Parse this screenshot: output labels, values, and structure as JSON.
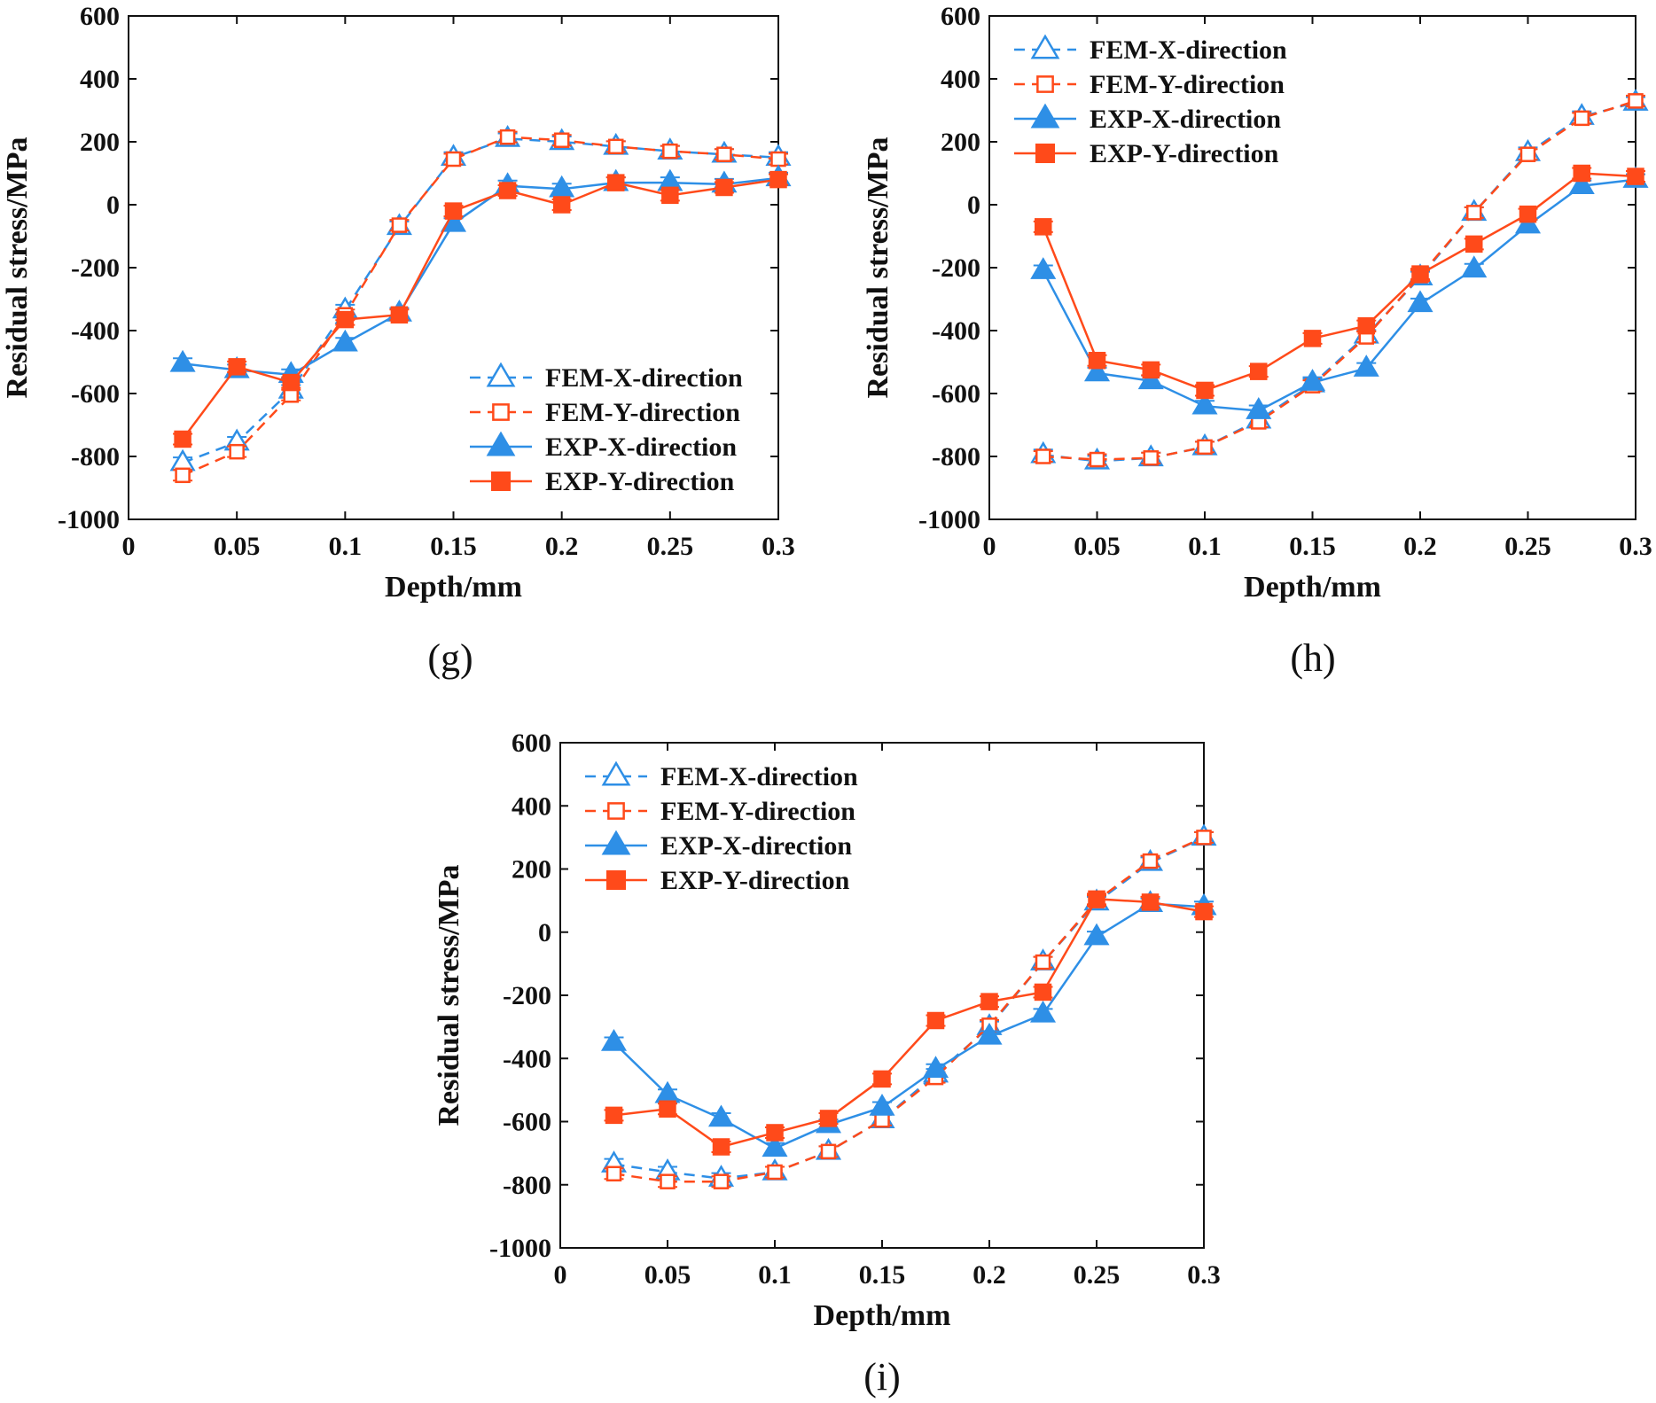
{
  "colors": {
    "x_direction": "#2e8fe6",
    "y_direction": "#ff4a1a",
    "axis": "#111111"
  },
  "chart_data": [
    {
      "type": "line",
      "panel_label": "(g)",
      "xlabel": "Depth/mm",
      "ylabel": "Residual stress/MPa",
      "xlim": [
        0,
        0.3
      ],
      "ylim": [
        -1000,
        600
      ],
      "x_ticks": [
        "0",
        "0.05",
        "0.1",
        "0.15",
        "0.2",
        "0.25",
        "0.3"
      ],
      "y_ticks": [
        "600",
        "400",
        "200",
        "0",
        "-200",
        "-400",
        "-600",
        "-800",
        "-1000"
      ],
      "legend_position": "bottom-right",
      "x": [
        0.025,
        0.05,
        0.075,
        0.1,
        0.125,
        0.15,
        0.175,
        0.2,
        0.225,
        0.25,
        0.275,
        0.3
      ],
      "series": [
        {
          "name": "FEM-X-direction",
          "style": "dashed",
          "marker": "open-triangle",
          "color": "#2e8fe6",
          "values": [
            -820,
            -755,
            -590,
            -335,
            -70,
            150,
            210,
            200,
            185,
            170,
            160,
            150
          ]
        },
        {
          "name": "FEM-Y-direction",
          "style": "dashed",
          "marker": "open-square",
          "color": "#ff4a1a",
          "values": [
            -860,
            -785,
            -605,
            -350,
            -65,
            145,
            215,
            205,
            185,
            170,
            160,
            145
          ]
        },
        {
          "name": "EXP-X-direction",
          "style": "solid",
          "marker": "filled-triangle",
          "color": "#2e8fe6",
          "values": [
            -505,
            -525,
            -540,
            -440,
            -345,
            -60,
            60,
            50,
            70,
            70,
            65,
            85
          ]
        },
        {
          "name": "EXP-Y-direction",
          "style": "solid",
          "marker": "filled-square",
          "color": "#ff4a1a",
          "values": [
            -745,
            -515,
            -565,
            -365,
            -350,
            -20,
            45,
            0,
            70,
            30,
            55,
            80
          ]
        }
      ]
    },
    {
      "type": "line",
      "panel_label": "(h)",
      "xlabel": "Depth/mm",
      "ylabel": "Residual stress/MPa",
      "xlim": [
        0,
        0.3
      ],
      "ylim": [
        -1000,
        600
      ],
      "x_ticks": [
        "0",
        "0.05",
        "0.1",
        "0.15",
        "0.2",
        "0.25",
        "0.3"
      ],
      "y_ticks": [
        "600",
        "400",
        "200",
        "0",
        "-200",
        "-400",
        "-600",
        "-800",
        "-1000"
      ],
      "legend_position": "top-left",
      "x": [
        0.025,
        0.05,
        0.075,
        0.1,
        0.125,
        0.15,
        0.175,
        0.2,
        0.225,
        0.25,
        0.275,
        0.3
      ],
      "series": [
        {
          "name": "FEM-X-direction",
          "style": "dashed",
          "marker": "open-triangle",
          "color": "#2e8fe6",
          "values": [
            -795,
            -815,
            -805,
            -770,
            -685,
            -570,
            -415,
            -230,
            -25,
            165,
            280,
            325
          ]
        },
        {
          "name": "FEM-Y-direction",
          "style": "dashed",
          "marker": "open-square",
          "color": "#ff4a1a",
          "values": [
            -800,
            -810,
            -805,
            -770,
            -690,
            -575,
            -420,
            -225,
            -25,
            160,
            275,
            330
          ]
        },
        {
          "name": "EXP-X-direction",
          "style": "solid",
          "marker": "filled-triangle",
          "color": "#2e8fe6",
          "values": [
            -210,
            -535,
            -560,
            -640,
            -655,
            -565,
            -520,
            -315,
            -205,
            -65,
            60,
            80
          ]
        },
        {
          "name": "EXP-Y-direction",
          "style": "solid",
          "marker": "filled-square",
          "color": "#ff4a1a",
          "values": [
            -70,
            -495,
            -525,
            -590,
            -530,
            -425,
            -385,
            -220,
            -125,
            -30,
            100,
            90
          ]
        }
      ]
    },
    {
      "type": "line",
      "panel_label": "(i)",
      "xlabel": "Depth/mm",
      "ylabel": "Residual stress/MPa",
      "xlim": [
        0,
        0.3
      ],
      "ylim": [
        -1000,
        600
      ],
      "x_ticks": [
        "0",
        "0.05",
        "0.1",
        "0.15",
        "0.2",
        "0.25",
        "0.3"
      ],
      "y_ticks": [
        "600",
        "400",
        "200",
        "0",
        "-200",
        "-400",
        "-600",
        "-800",
        "-1000"
      ],
      "legend_position": "top-left",
      "x": [
        0.025,
        0.05,
        0.075,
        0.1,
        0.125,
        0.15,
        0.175,
        0.2,
        0.225,
        0.25,
        0.275,
        0.3
      ],
      "series": [
        {
          "name": "FEM-X-direction",
          "style": "dashed",
          "marker": "open-triangle",
          "color": "#2e8fe6",
          "values": [
            -735,
            -760,
            -780,
            -760,
            -695,
            -595,
            -450,
            -300,
            -95,
            95,
            220,
            300
          ]
        },
        {
          "name": "FEM-Y-direction",
          "style": "dashed",
          "marker": "open-square",
          "color": "#ff4a1a",
          "values": [
            -765,
            -790,
            -790,
            -760,
            -695,
            -595,
            -460,
            -295,
            -95,
            100,
            225,
            300
          ]
        },
        {
          "name": "EXP-X-direction",
          "style": "solid",
          "marker": "filled-triangle",
          "color": "#2e8fe6",
          "values": [
            -350,
            -515,
            -590,
            -685,
            -610,
            -555,
            -435,
            -330,
            -260,
            -15,
            90,
            80
          ]
        },
        {
          "name": "EXP-Y-direction",
          "style": "solid",
          "marker": "filled-square",
          "color": "#ff4a1a",
          "values": [
            -580,
            -560,
            -680,
            -635,
            -590,
            -465,
            -280,
            -220,
            -190,
            105,
            95,
            65
          ]
        }
      ]
    }
  ]
}
